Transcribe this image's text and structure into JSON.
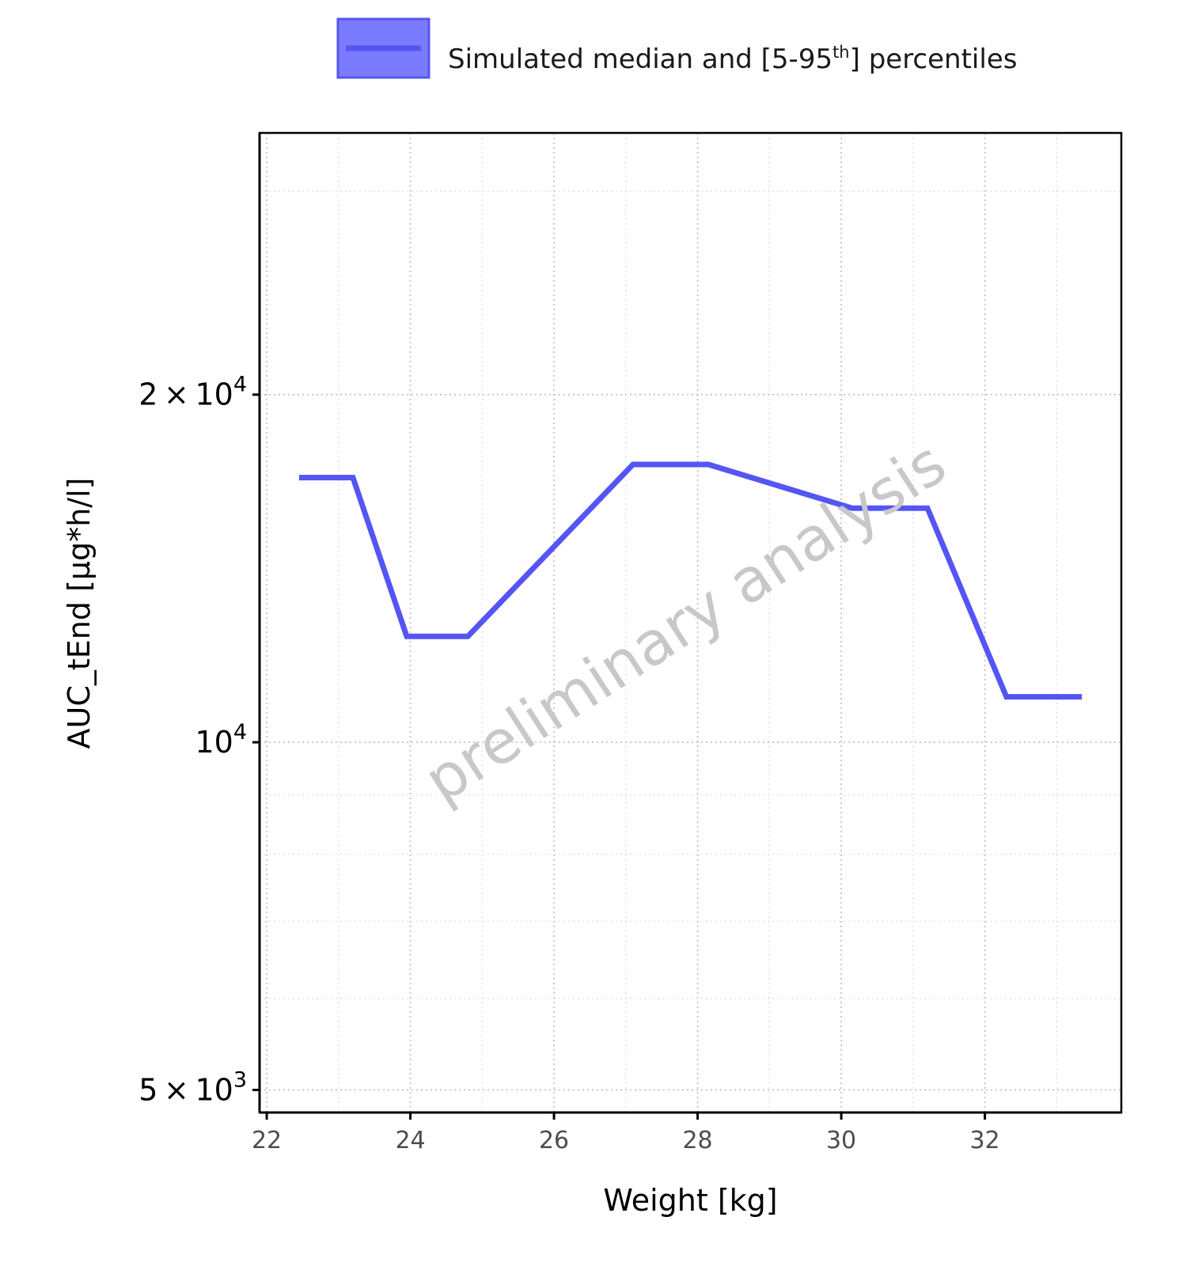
{
  "legend": {
    "label": "Simulated median and [5-95",
    "superscript": "th",
    "label_tail": "] percentiles",
    "swatch_fill": "#7b7bff",
    "swatch_border": "#5656f0"
  },
  "watermark": "preliminary analysis",
  "chart_data": {
    "type": "line",
    "xlabel": "Weight [kg]",
    "ylabel": "AUC_tEnd [µg*h/l]",
    "x_scale": "linear",
    "y_scale": "log",
    "xlim": [
      21.9,
      33.9
    ],
    "ylim": [
      4780,
      33700
    ],
    "x_ticks": [
      22,
      24,
      26,
      28,
      30,
      32
    ],
    "x_tick_labels": [
      "22",
      "24",
      "26",
      "28",
      "30",
      "32"
    ],
    "y_ticks": [
      {
        "value": 5000,
        "mantissa": "5",
        "exponent": "3",
        "style": "sci"
      },
      {
        "value": 10000,
        "mantissa": "",
        "exponent": "4",
        "style": "pow"
      },
      {
        "value": 20000,
        "mantissa": "2",
        "exponent": "4",
        "style": "sci"
      }
    ],
    "grid": true,
    "legend_position": "top",
    "line_color": "#5555f5",
    "series": [
      {
        "x": [
          22.45,
          23.2,
          23.95,
          24.8,
          27.1,
          28.15,
          30.15,
          31.2,
          32.3,
          33.35
        ],
        "y": [
          16950,
          16950,
          12350,
          12350,
          17400,
          17400,
          15950,
          15950,
          10950,
          10950
        ]
      }
    ]
  }
}
